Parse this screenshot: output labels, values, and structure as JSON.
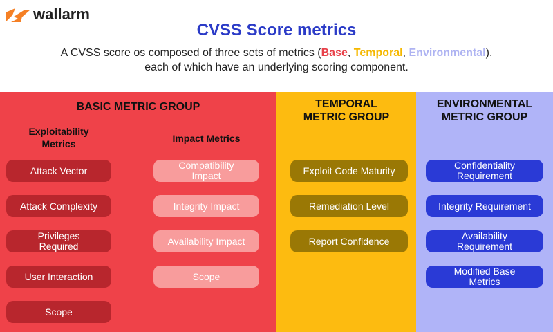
{
  "logo": "wallarm",
  "title": "CVSS Score metrics",
  "subtitle": {
    "parts": [
      "A CVSS score os composed of three sets of metrics (",
      "Base",
      ", ",
      "Temporal",
      ", ",
      "Environmental",
      "),"
    ],
    "line2": "each of which have an underlying scoring component."
  },
  "groups": [
    {
      "title": "BASIC METRIC GROUP",
      "columns": [
        {
          "title": "Exploitability Metrics",
          "items": [
            "Attack Vector",
            "Attack Complexity",
            "Privileges Required",
            "User Interaction",
            "Scope"
          ]
        },
        {
          "title": "Impact Metrics",
          "items": [
            "Compatibility Impact",
            "Integrity Impact",
            "Availability Impact",
            "Scope"
          ]
        }
      ]
    },
    {
      "title": "TEMPORAL METRIC GROUP",
      "items": [
        "Exploit Code Maturity",
        "Remediation Level",
        "Report Confidence"
      ]
    },
    {
      "title": "ENVIRONMENTAL METRIC GROUP",
      "items": [
        "Confidentiality Requirement",
        "Integrity Requirement",
        "Availability Requirement",
        "Modified Base Metrics"
      ]
    }
  ]
}
